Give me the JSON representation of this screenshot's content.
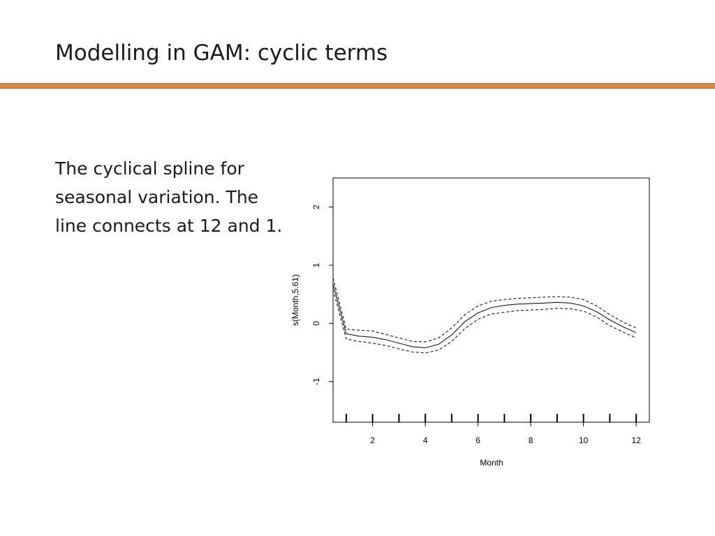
{
  "slide": {
    "title": "Modelling in GAM: cyclic terms",
    "body": "The cyclical spline for seasonal variation. The line connects at 12 and 1."
  },
  "chart_data": {
    "type": "line",
    "title": "",
    "xlabel": "Month",
    "ylabel": "s(Month,5.61)",
    "xlim": [
      0.5,
      12.5
    ],
    "ylim": [
      -1.7,
      2.5
    ],
    "x_ticks": [
      2,
      4,
      6,
      8,
      10,
      12
    ],
    "y_ticks": [
      -1,
      0,
      1,
      2
    ],
    "rug": [
      1,
      2,
      3,
      4,
      5,
      6,
      7,
      8,
      9,
      10,
      11,
      12
    ],
    "grid": false,
    "series": [
      {
        "style": "solid",
        "points": [
          [
            0.5,
            0.68
          ],
          [
            1,
            -0.18
          ],
          [
            1.5,
            -0.22
          ],
          [
            2,
            -0.24
          ],
          [
            2.5,
            -0.28
          ],
          [
            3,
            -0.34
          ],
          [
            3.5,
            -0.4
          ],
          [
            4,
            -0.42
          ],
          [
            4.5,
            -0.36
          ],
          [
            5,
            -0.2
          ],
          [
            5.5,
            0.03
          ],
          [
            6,
            0.18
          ],
          [
            6.5,
            0.27
          ],
          [
            7,
            0.31
          ],
          [
            7.5,
            0.33
          ],
          [
            8,
            0.34
          ],
          [
            8.5,
            0.35
          ],
          [
            9,
            0.36
          ],
          [
            9.5,
            0.35
          ],
          [
            10,
            0.3
          ],
          [
            10.5,
            0.2
          ],
          [
            11,
            0.06
          ],
          [
            11.5,
            -0.06
          ],
          [
            12,
            -0.16
          ]
        ]
      },
      {
        "style": "dashed",
        "points": [
          [
            0.5,
            0.78
          ],
          [
            1,
            -0.1
          ],
          [
            1.5,
            -0.12
          ],
          [
            2,
            -0.13
          ],
          [
            2.5,
            -0.19
          ],
          [
            3,
            -0.25
          ],
          [
            3.5,
            -0.31
          ],
          [
            4,
            -0.32
          ],
          [
            4.5,
            -0.25
          ],
          [
            5,
            -0.08
          ],
          [
            5.5,
            0.15
          ],
          [
            6,
            0.3
          ],
          [
            6.5,
            0.38
          ],
          [
            7,
            0.41
          ],
          [
            7.5,
            0.43
          ],
          [
            8,
            0.44
          ],
          [
            8.5,
            0.45
          ],
          [
            9,
            0.46
          ],
          [
            9.5,
            0.45
          ],
          [
            10,
            0.41
          ],
          [
            10.5,
            0.3
          ],
          [
            11,
            0.15
          ],
          [
            11.5,
            0.02
          ],
          [
            12,
            -0.08
          ]
        ]
      },
      {
        "style": "dashed",
        "points": [
          [
            0.5,
            0.58
          ],
          [
            1,
            -0.27
          ],
          [
            1.5,
            -0.31
          ],
          [
            2,
            -0.34
          ],
          [
            2.5,
            -0.38
          ],
          [
            3,
            -0.44
          ],
          [
            3.5,
            -0.49
          ],
          [
            4,
            -0.51
          ],
          [
            4.5,
            -0.46
          ],
          [
            5,
            -0.31
          ],
          [
            5.5,
            -0.09
          ],
          [
            6,
            0.07
          ],
          [
            6.5,
            0.16
          ],
          [
            7,
            0.19
          ],
          [
            7.5,
            0.22
          ],
          [
            8,
            0.23
          ],
          [
            8.5,
            0.24
          ],
          [
            9,
            0.26
          ],
          [
            9.5,
            0.25
          ],
          [
            10,
            0.21
          ],
          [
            10.5,
            0.11
          ],
          [
            11,
            -0.04
          ],
          [
            11.5,
            -0.15
          ],
          [
            12,
            -0.25
          ]
        ]
      }
    ]
  }
}
